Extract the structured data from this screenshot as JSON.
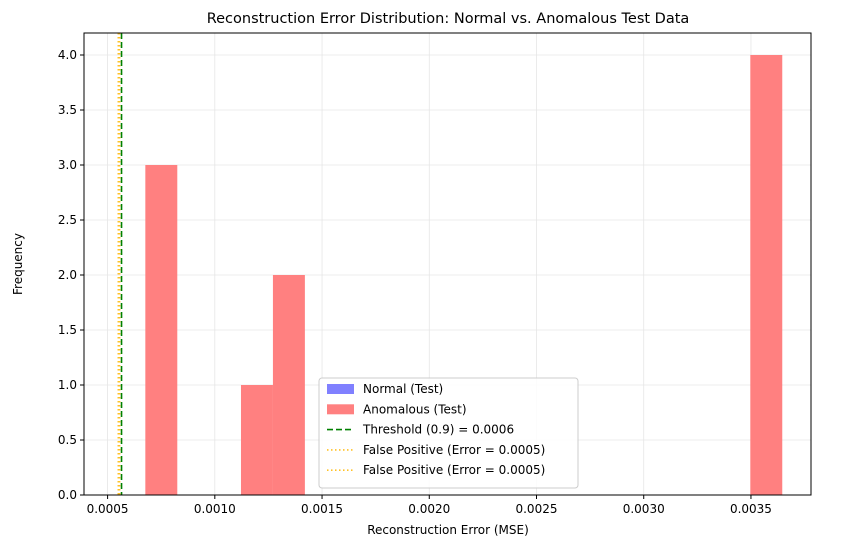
{
  "chart_data": {
    "type": "bar",
    "title": "Reconstruction Error Distribution: Normal vs. Anomalous Test Data",
    "xlabel": "Reconstruction Error (MSE)",
    "ylabel": "Frequency",
    "xlim": [
      0.00039,
      0.00378
    ],
    "ylim": [
      0,
      4.2
    ],
    "xticks": [
      0.0005,
      0.001,
      0.0015,
      0.002,
      0.0025,
      0.003,
      0.0035
    ],
    "xtick_labels": [
      "0.0005",
      "0.0010",
      "0.0015",
      "0.0020",
      "0.0025",
      "0.0030",
      "0.0035"
    ],
    "yticks": [
      0.0,
      0.5,
      1.0,
      1.5,
      2.0,
      2.5,
      3.0,
      3.5,
      4.0
    ],
    "ytick_labels": [
      "0.0",
      "0.5",
      "1.0",
      "1.5",
      "2.0",
      "2.5",
      "3.0",
      "3.5",
      "4.0"
    ],
    "grid": true,
    "legend_position": "lower-center",
    "series": [
      {
        "name": "Normal (Test)",
        "color": "#8080ff",
        "bins": []
      },
      {
        "name": "Anomalous (Test)",
        "color": "#ff8080",
        "bins": [
          {
            "x0": 0.000676,
            "x1": 0.000825,
            "count": 3
          },
          {
            "x0": 0.001122,
            "x1": 0.001271,
            "count": 1
          },
          {
            "x0": 0.001271,
            "x1": 0.00142,
            "count": 2
          },
          {
            "x0": 0.003497,
            "x1": 0.003646,
            "count": 4
          }
        ]
      }
    ],
    "reference_lines": [
      {
        "name": "Threshold (0.9) = 0.0006",
        "x": 0.000565,
        "color": "#008000",
        "style": "dashed"
      },
      {
        "name": "False Positive (Error = 0.0005)",
        "x": 0.00055,
        "color": "#ffc125",
        "style": "dotted"
      },
      {
        "name": "False Positive (Error = 0.0005)",
        "x": 0.000556,
        "color": "#ffc125",
        "style": "dotted"
      }
    ]
  }
}
